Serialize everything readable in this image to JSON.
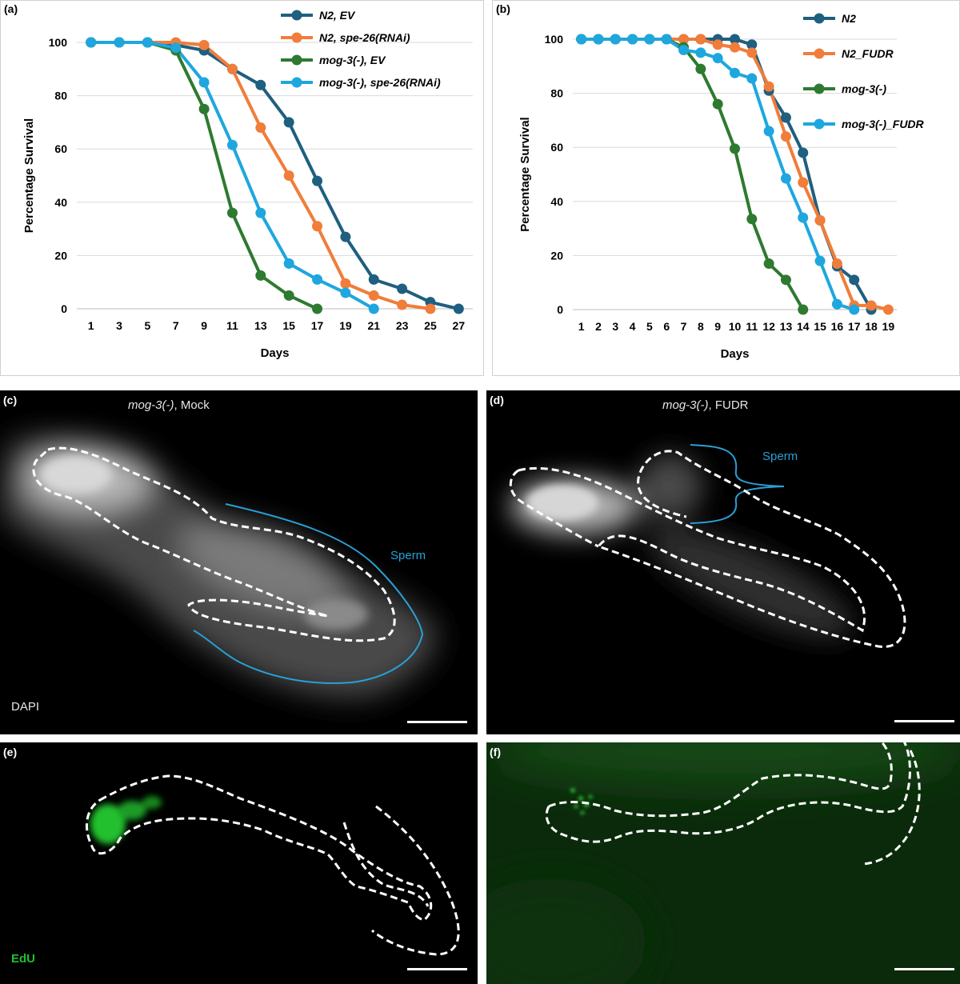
{
  "panels": {
    "a": {
      "letter": "(a)"
    },
    "b": {
      "letter": "(b)"
    },
    "c": {
      "letter": "(c)",
      "title_italic": "mog-3(-)",
      "title_rest": ", Mock",
      "stain": "DAPI",
      "annotation": "Sperm"
    },
    "d": {
      "letter": "(d)",
      "title_italic": "mog-3(-)",
      "title_rest": ", FUDR",
      "annotation": "Sperm"
    },
    "e": {
      "letter": "(e)",
      "stain": "EdU"
    },
    "f": {
      "letter": "(f)"
    }
  },
  "colors": {
    "dark_blue": "#1f5f7f",
    "orange": "#f07d3a",
    "green": "#2e7a30",
    "light_blue": "#1ea7de",
    "annotation_blue": "#2a9fd6",
    "edu_green": "#20c030"
  },
  "chart_data": [
    {
      "type": "line",
      "panel": "a",
      "xlabel": "Days",
      "ylabel": "Percentage Survival",
      "categories": [
        1,
        3,
        5,
        7,
        9,
        11,
        13,
        15,
        17,
        19,
        21,
        23,
        25,
        27
      ],
      "ylim": [
        0,
        100
      ],
      "yticks": [
        0,
        20,
        40,
        60,
        80,
        100
      ],
      "grid": true,
      "legend": "top-right",
      "series": [
        {
          "name": "N2, EV",
          "color": "#1f5f7f",
          "x": [
            1,
            3,
            5,
            7,
            9,
            11,
            13,
            15,
            17,
            19,
            21,
            23,
            25,
            27
          ],
          "y": [
            100,
            100,
            100,
            99,
            97,
            90,
            84,
            70,
            48,
            27,
            11,
            7.5,
            2.5,
            0
          ]
        },
        {
          "name": "N2, spe-26(RNAi)",
          "color": "#f07d3a",
          "x": [
            1,
            3,
            5,
            7,
            9,
            11,
            13,
            15,
            17,
            19,
            21,
            23,
            25
          ],
          "y": [
            100,
            100,
            100,
            100,
            99,
            90,
            68,
            50,
            31,
            9.5,
            5,
            1.5,
            0
          ]
        },
        {
          "name": "mog-3(-), EV",
          "color": "#2e7a30",
          "x": [
            1,
            3,
            5,
            7,
            9,
            11,
            13,
            15,
            17
          ],
          "y": [
            100,
            100,
            100,
            97,
            75,
            36,
            12.5,
            5,
            0
          ]
        },
        {
          "name": "mog-3(-), spe-26(RNAi)",
          "color": "#1ea7de",
          "x": [
            1,
            3,
            5,
            7,
            9,
            11,
            13,
            15,
            17,
            19,
            21
          ],
          "y": [
            100,
            100,
            100,
            98,
            85,
            61.5,
            36,
            17,
            11,
            6,
            0
          ]
        }
      ]
    },
    {
      "type": "line",
      "panel": "b",
      "xlabel": "Days",
      "ylabel": "Percentage Survival",
      "categories": [
        1,
        2,
        3,
        4,
        5,
        6,
        7,
        8,
        9,
        10,
        11,
        12,
        13,
        14,
        15,
        16,
        17,
        18,
        19
      ],
      "ylim": [
        0,
        100
      ],
      "yticks": [
        0,
        20,
        40,
        60,
        80,
        100
      ],
      "grid": true,
      "legend": "top-right",
      "series": [
        {
          "name": "N2",
          "color": "#1f5f7f",
          "x": [
            1,
            2,
            3,
            4,
            5,
            6,
            7,
            8,
            9,
            10,
            11,
            12,
            13,
            14,
            15,
            16,
            17,
            18
          ],
          "y": [
            100,
            100,
            100,
            100,
            100,
            100,
            100,
            100,
            100,
            100,
            98,
            81,
            71,
            58,
            33,
            16,
            11,
            0
          ]
        },
        {
          "name": "N2_FUDR",
          "color": "#f07d3a",
          "x": [
            1,
            2,
            3,
            4,
            5,
            6,
            7,
            8,
            9,
            10,
            11,
            12,
            13,
            14,
            15,
            16,
            17,
            18,
            19
          ],
          "y": [
            100,
            100,
            100,
            100,
            100,
            100,
            100,
            100,
            98,
            97,
            95,
            82.5,
            64,
            47,
            33,
            17,
            1.5,
            1.5,
            0
          ]
        },
        {
          "name": "mog-3(-)",
          "color": "#2e7a30",
          "x": [
            1,
            2,
            3,
            4,
            5,
            6,
            7,
            8,
            9,
            10,
            11,
            12,
            13,
            14
          ],
          "y": [
            100,
            100,
            100,
            100,
            100,
            100,
            97,
            89,
            76,
            59.5,
            33.5,
            17,
            11,
            0
          ]
        },
        {
          "name": "mog-3(-)_FUDR",
          "color": "#1ea7de",
          "x": [
            1,
            2,
            3,
            4,
            5,
            6,
            7,
            8,
            9,
            10,
            11,
            12,
            13,
            14,
            15,
            16,
            17
          ],
          "y": [
            100,
            100,
            100,
            100,
            100,
            100,
            96,
            95,
            93,
            87.5,
            85.5,
            66,
            48.5,
            34,
            18,
            2,
            0
          ]
        }
      ]
    }
  ]
}
